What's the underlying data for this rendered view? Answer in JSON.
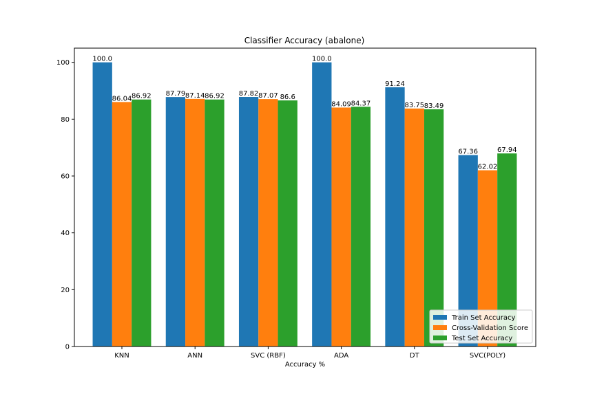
{
  "chart_data": {
    "type": "bar",
    "title": "Classifier Accuracy (abalone)",
    "xlabel": "Accuracy %",
    "ylabel": "",
    "ylim": [
      0,
      105
    ],
    "yticks": [
      0,
      20,
      40,
      60,
      80,
      100
    ],
    "categories": [
      "KNN",
      "ANN",
      "SVC (RBF)",
      "ADA",
      "DT",
      "SVC(POLY)"
    ],
    "series": [
      {
        "name": "Train Set  Accuracy",
        "color": "#1f77b4",
        "values": [
          100.0,
          87.79,
          87.82,
          100.0,
          91.24,
          67.36
        ],
        "labels": [
          "100.0",
          "87.79",
          "87.82",
          "100.0",
          "91.24",
          "67.36"
        ]
      },
      {
        "name": "Cross-Validation Score",
        "color": "#ff7f0e",
        "values": [
          86.04,
          87.14,
          87.07,
          84.09,
          83.75,
          62.02
        ],
        "labels": [
          "86.04",
          "87.14",
          "87.07",
          "84.09",
          "83.75",
          "62.02"
        ]
      },
      {
        "name": "Test Set Accuracy",
        "color": "#2ca02c",
        "values": [
          86.92,
          86.92,
          86.6,
          84.37,
          83.49,
          67.94
        ],
        "labels": [
          "86.92",
          "86.92",
          "86.6",
          "84.37",
          "83.49",
          "67.94"
        ]
      }
    ],
    "legend": "lower-right",
    "grid": false
  }
}
